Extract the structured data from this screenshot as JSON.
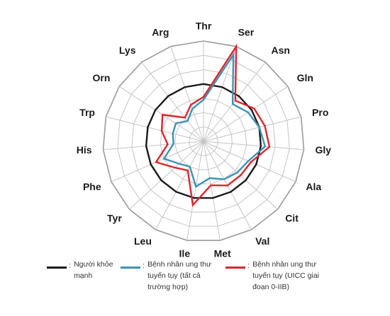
{
  "chart_data": {
    "type": "radar",
    "axes": [
      "Thr",
      "Ser",
      "Asn",
      "Gln",
      "Pro",
      "Gly",
      "Ala",
      "Cit",
      "Val",
      "Met",
      "Ile",
      "Leu",
      "Tyr",
      "Phe",
      "His",
      "Trp",
      "Orn",
      "Lys",
      "Arg"
    ],
    "rings": 7,
    "reference_ring": 4,
    "grid": true,
    "series": [
      {
        "key": "healthy",
        "color": "#1a1a1a",
        "values": [
          4,
          4,
          4,
          4,
          4,
          4,
          4,
          4,
          4,
          4,
          4,
          4,
          4,
          4,
          4,
          4,
          4,
          4,
          4
        ]
      },
      {
        "key": "all_stages",
        "color": "#3e92b3",
        "values": [
          2.9,
          6.4,
          3.3,
          3.7,
          4.0,
          4.3,
          3.4,
          3.2,
          3.0,
          2.6,
          3.2,
          2.0,
          2.3,
          3.0,
          2.1,
          2.2,
          2.3,
          1.8,
          2.4
        ]
      },
      {
        "key": "early_stage",
        "color": "#d9262d",
        "values": [
          3.1,
          7.0,
          3.6,
          4.2,
          4.4,
          4.6,
          3.6,
          3.5,
          3.5,
          3.1,
          4.5,
          2.3,
          2.7,
          3.6,
          2.5,
          3.0,
          3.4,
          2.1,
          2.7
        ]
      }
    ]
  },
  "legend": [
    {
      "color": "#1a1a1a",
      "colon": ":",
      "lines": [
        "Người khỏe",
        "mạnh"
      ]
    },
    {
      "color": "#3e92b3",
      "colon": ":",
      "lines": [
        "Bệnh nhân ung thư",
        "tuyến tụy (tất cả",
        "trường hợp)"
      ]
    },
    {
      "color": "#d9262d",
      "colon": ":",
      "lines": [
        "Bệnh nhân ung thư",
        "tuyến tụy (UICC giai",
        "đoạn 0-IIB)"
      ]
    }
  ]
}
